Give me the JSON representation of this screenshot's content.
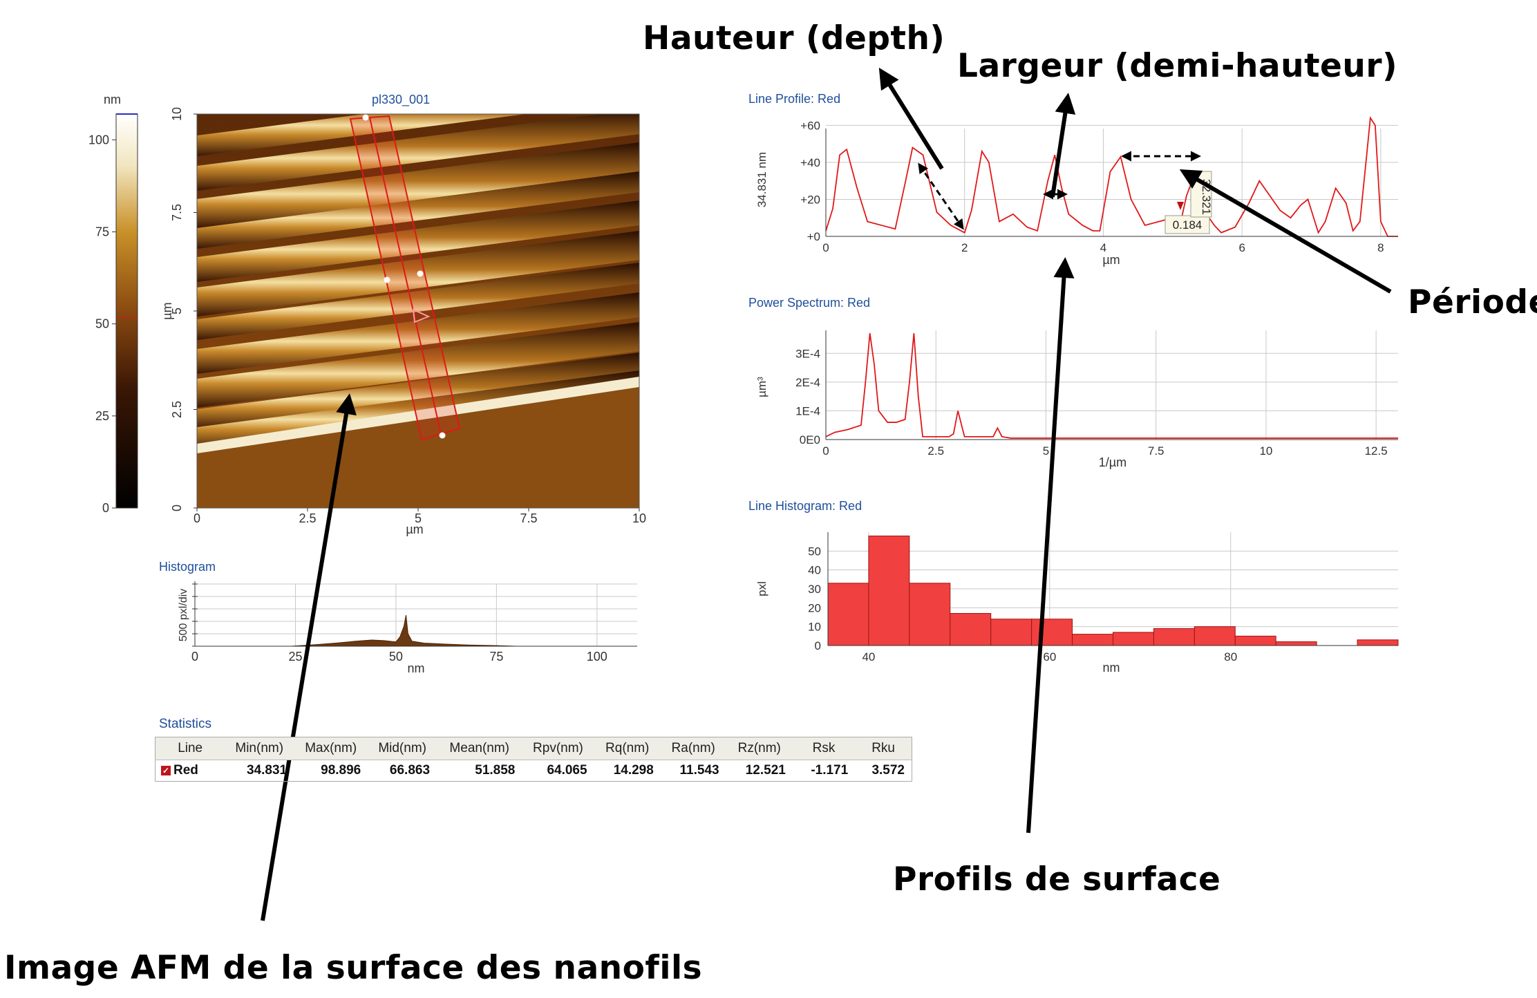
{
  "annotations": {
    "hauteur": "Hauteur  (depth)",
    "largeur": "Largeur (demi-hauteur)",
    "periode": "Période",
    "profils": "Profils de surface",
    "image_afm": "Image AFM de la surface des nanofils"
  },
  "afm_image": {
    "title": "pl330_001",
    "colorbar_unit": "nm",
    "colorbar_ticks": [
      "100",
      "75",
      "50",
      "25",
      "0"
    ],
    "x_ticks": [
      "0",
      "2.5",
      "5",
      "7.5",
      "10"
    ],
    "y_ticks": [
      "0",
      "2.5",
      "5",
      "7.5",
      "10"
    ],
    "x_unit": "µm",
    "y_unit": "µm"
  },
  "histogram": {
    "title": "Histogram",
    "ylabel": "500 pxl/div",
    "x_ticks": [
      "0",
      "25",
      "50",
      "75",
      "100"
    ],
    "xlabel": "nm"
  },
  "line_profile": {
    "title": "Line Profile: Red",
    "ylabel": "34.831 nm",
    "y_ticks": [
      "+60",
      "+40",
      "+20",
      "+0"
    ],
    "x_ticks": [
      "0",
      "2",
      "4",
      "6",
      "8"
    ],
    "xlabel": "µm",
    "marker_labels": [
      "0.184",
      "32.321"
    ]
  },
  "power_spectrum": {
    "title": "Power Spectrum: Red",
    "ylabel": "µm³",
    "y_ticks": [
      "3E-4",
      "2E-4",
      "1E-4",
      "0E0"
    ],
    "x_ticks": [
      "0",
      "2.5",
      "5",
      "7.5",
      "10",
      "12.5"
    ],
    "xlabel": "1/µm"
  },
  "line_histogram": {
    "title": "Line Histogram: Red",
    "ylabel": "pxl",
    "y_ticks": [
      "50",
      "40",
      "30",
      "20",
      "10",
      "0"
    ],
    "x_ticks": [
      "40",
      "60",
      "80"
    ],
    "xlabel": "nm"
  },
  "chart_data": [
    {
      "type": "line",
      "name": "line_profile",
      "x": [
        0,
        0.1,
        0.2,
        0.3,
        0.45,
        0.6,
        0.8,
        1.0,
        1.15,
        1.25,
        1.4,
        1.6,
        1.8,
        1.9,
        2.0,
        2.1,
        2.25,
        2.35,
        2.5,
        2.7,
        2.9,
        3.05,
        3.2,
        3.3,
        3.4,
        3.5,
        3.7,
        3.85,
        3.95,
        4.1,
        4.25,
        4.4,
        4.6,
        4.8,
        5.0,
        5.1,
        5.2,
        5.3,
        5.45,
        5.6,
        5.7,
        5.9,
        6.1,
        6.25,
        6.4,
        6.55,
        6.7,
        6.85,
        6.95,
        7.1,
        7.2,
        7.35,
        7.5,
        7.6,
        7.7,
        7.8,
        7.85,
        7.92,
        8.0,
        8.1,
        8.25
      ],
      "y": [
        3,
        15,
        44,
        47,
        26,
        8,
        6,
        4,
        30,
        48,
        44,
        13,
        6,
        4,
        2,
        14,
        46,
        40,
        8,
        12,
        5,
        3,
        30,
        44,
        26,
        12,
        6,
        3,
        3,
        35,
        43,
        20,
        6,
        8,
        10,
        5,
        22,
        32,
        14,
        6,
        2,
        5,
        18,
        30,
        22,
        14,
        10,
        17,
        20,
        2,
        8,
        26,
        18,
        3,
        8,
        45,
        64,
        60,
        8,
        0,
        0
      ],
      "ylim": [
        0,
        65
      ],
      "xlim": [
        0,
        8.25
      ],
      "xlabel": "µm",
      "ylabel": "34.831 nm"
    },
    {
      "type": "line",
      "name": "power_spectrum",
      "x": [
        0,
        0.2,
        0.5,
        0.8,
        0.9,
        1.0,
        1.1,
        1.2,
        1.4,
        1.6,
        1.8,
        1.9,
        2.0,
        2.1,
        2.2,
        2.6,
        2.8,
        2.9,
        3.0,
        3.15,
        3.3,
        3.6,
        3.8,
        3.9,
        4.0,
        4.2,
        5.0,
        13.0
      ],
      "y": [
        1e-05,
        2.5e-05,
        3.5e-05,
        5e-05,
        0.0002,
        0.00037,
        0.00026,
        0.0001,
        6e-05,
        6e-05,
        7e-05,
        0.0002,
        0.00037,
        0.00015,
        1e-05,
        1e-05,
        1e-05,
        2e-05,
        0.0001,
        1e-05,
        1e-05,
        1e-05,
        1e-05,
        4e-05,
        1e-05,
        5e-06,
        5e-06,
        5e-06
      ],
      "xlim": [
        0,
        13.0
      ],
      "ylim": [
        0,
        0.00038
      ],
      "xlabel": "1/µm",
      "ylabel": "µm³"
    },
    {
      "type": "bar",
      "name": "line_histogram",
      "bin_edges": [
        35.5,
        40,
        44.5,
        49,
        53.5,
        58,
        62.5,
        67,
        71.5,
        76,
        80.5,
        85,
        89.5,
        94,
        98.5
      ],
      "values": [
        33,
        58,
        33,
        17,
        14,
        14,
        6,
        7,
        9,
        10,
        5,
        2,
        0,
        3
      ],
      "ylim": [
        0,
        60
      ],
      "xlabel": "nm",
      "ylabel": "pxl"
    },
    {
      "type": "area",
      "name": "histogram",
      "x": [
        24,
        30,
        35,
        40,
        44,
        47,
        50,
        51,
        52,
        52.5,
        53,
        54,
        57,
        62,
        68,
        75,
        80
      ],
      "y": [
        0.0,
        0.05,
        0.1,
        0.16,
        0.2,
        0.18,
        0.14,
        0.3,
        0.65,
        1.0,
        0.4,
        0.16,
        0.1,
        0.07,
        0.04,
        0.02,
        0.0
      ],
      "xlim": [
        0,
        110
      ],
      "xlabel": "nm",
      "ylabel": "500 pxl/div"
    }
  ],
  "statistics": {
    "title": "Statistics",
    "headers": [
      "Line",
      "Min(nm)",
      "Max(nm)",
      "Mid(nm)",
      "Mean(nm)",
      "Rpv(nm)",
      "Rq(nm)",
      "Ra(nm)",
      "Rz(nm)",
      "Rsk",
      "Rku"
    ],
    "row": [
      "Red",
      "34.831",
      "98.896",
      "66.863",
      "51.858",
      "64.065",
      "14.298",
      "11.543",
      "12.521",
      "-1.171",
      "3.572"
    ],
    "check_icon": "check-icon"
  }
}
